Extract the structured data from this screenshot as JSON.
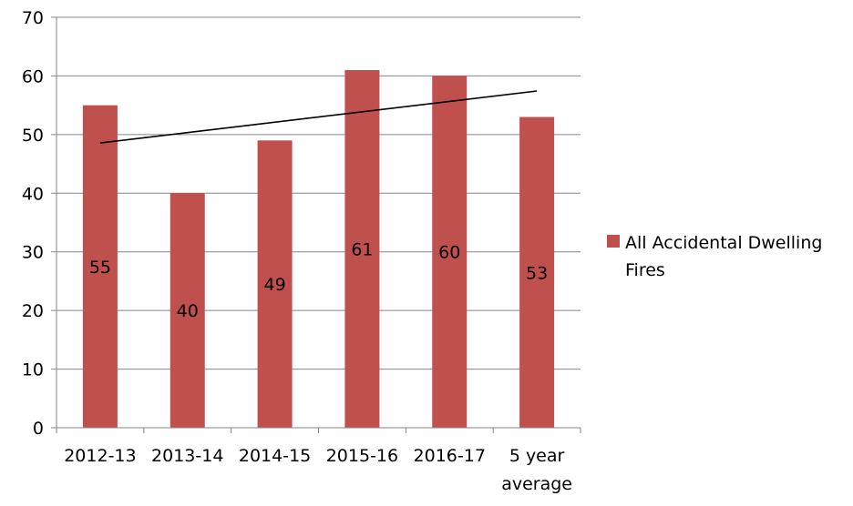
{
  "chart_data": {
    "type": "bar",
    "categories": [
      "2012-13",
      "2013-14",
      "2014-15",
      "2015-16",
      "2016-17",
      "5 year average"
    ],
    "category_label_lines": [
      [
        "2012-13"
      ],
      [
        "2013-14"
      ],
      [
        "2014-15"
      ],
      [
        "2015-16"
      ],
      [
        "2016-17"
      ],
      [
        "5 year",
        "average"
      ]
    ],
    "series": [
      {
        "name": "All Accidental Dwelling Fires",
        "values": [
          55,
          40,
          49,
          61,
          60,
          53
        ],
        "color": "#C0504D"
      }
    ],
    "data_labels": [
      "55",
      "40",
      "49",
      "61",
      "60",
      "53"
    ],
    "trendline": {
      "type": "linear",
      "color": "#000000"
    },
    "y_ticks": [
      "0",
      "10",
      "20",
      "30",
      "40",
      "50",
      "60",
      "70"
    ],
    "ylim": [
      0,
      70
    ],
    "grid": true,
    "legend_position": "right",
    "title": "",
    "xlabel": "",
    "ylabel": ""
  }
}
